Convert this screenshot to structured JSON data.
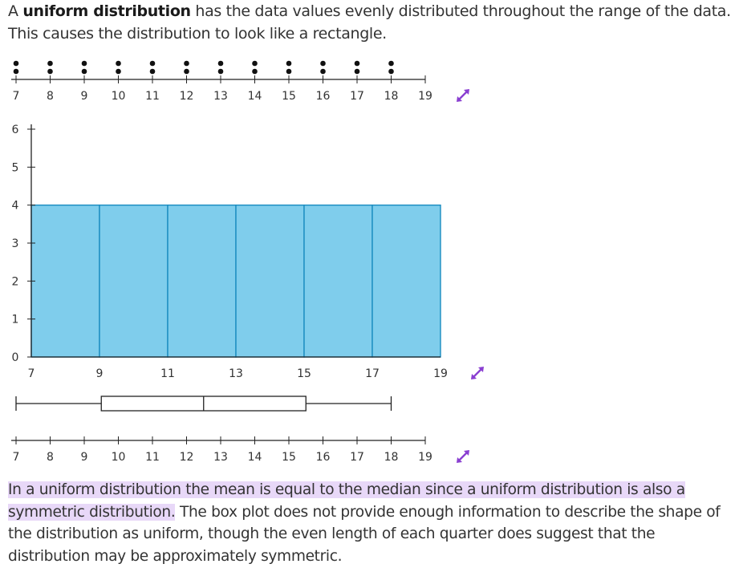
{
  "intro": {
    "prefix": "A ",
    "bold": "uniform distribution",
    "rest": " has the data values evenly distributed throughout the range of the data. This causes the distribution to look like a rectangle."
  },
  "outro": {
    "highlight": "In a uniform distribution the mean is equal to the median since a uniform distribution is also a symmetric distribution.",
    "rest": " The box plot does not provide enough information to describe the shape of the distribution as uniform, though the even length of each quarter does suggest that the distribution may be approximately symmetric."
  },
  "colors": {
    "bar_fill": "#7fcdec",
    "bar_stroke": "#1a8cc0",
    "expand_icon": "#8a3fd1"
  },
  "chart_data": [
    {
      "type": "scatter",
      "subtype": "dot-plot",
      "title": "",
      "xlabel": "",
      "ylabel": "",
      "xlim": [
        7,
        19
      ],
      "x_ticks": [
        7,
        8,
        9,
        10,
        11,
        12,
        13,
        14,
        15,
        16,
        17,
        18,
        19
      ],
      "points": [
        {
          "x": 7,
          "count": 2
        },
        {
          "x": 8,
          "count": 2
        },
        {
          "x": 9,
          "count": 2
        },
        {
          "x": 10,
          "count": 2
        },
        {
          "x": 11,
          "count": 2
        },
        {
          "x": 12,
          "count": 2
        },
        {
          "x": 13,
          "count": 2
        },
        {
          "x": 14,
          "count": 2
        },
        {
          "x": 15,
          "count": 2
        },
        {
          "x": 16,
          "count": 2
        },
        {
          "x": 17,
          "count": 2
        },
        {
          "x": 18,
          "count": 2
        }
      ]
    },
    {
      "type": "bar",
      "subtype": "histogram",
      "title": "",
      "xlabel": "",
      "ylabel": "",
      "bins": [
        [
          7,
          9
        ],
        [
          9,
          11
        ],
        [
          11,
          13
        ],
        [
          13,
          15
        ],
        [
          15,
          17
        ],
        [
          17,
          19
        ]
      ],
      "values": [
        4,
        4,
        4,
        4,
        4,
        4
      ],
      "x_ticks": [
        7,
        9,
        11,
        13,
        15,
        17,
        19
      ],
      "y_ticks": [
        0,
        1,
        2,
        3,
        4,
        5,
        6
      ],
      "ylim": [
        0,
        6
      ],
      "xlim": [
        7,
        19
      ]
    },
    {
      "type": "box",
      "title": "",
      "xlabel": "",
      "min": 7,
      "q1": 9.5,
      "median": 12.5,
      "q3": 15.5,
      "max": 18,
      "xlim": [
        7,
        19
      ],
      "x_ticks": [
        7,
        8,
        9,
        10,
        11,
        12,
        13,
        14,
        15,
        16,
        17,
        18,
        19
      ]
    }
  ]
}
